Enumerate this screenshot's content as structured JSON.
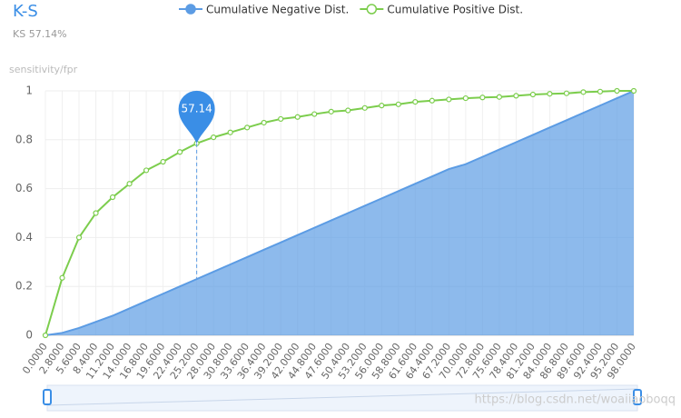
{
  "chart_data": {
    "type": "line",
    "title": "K-S",
    "subtitle": "KS  57.14%",
    "y_axis_label": "sensitivity/fpr",
    "annotation": "57.14",
    "watermark": "https://blog.csdn.net/woaiiaoboqq",
    "categories": [
      "0.0000",
      "2.8000",
      "5.6000",
      "8.4000",
      "11.2000",
      "14.0000",
      "16.8000",
      "19.6000",
      "22.4000",
      "25.2000",
      "28.0000",
      "30.8000",
      "33.6000",
      "36.4000",
      "39.2000",
      "42.0000",
      "44.8000",
      "47.6000",
      "50.4000",
      "53.2000",
      "56.0000",
      "58.8000",
      "61.6000",
      "64.4000",
      "67.2000",
      "70.0000",
      "72.8000",
      "75.6000",
      "78.4000",
      "81.2000",
      "84.0000",
      "86.8000",
      "89.6000",
      "92.4000",
      "95.2000",
      "98.0000"
    ],
    "series": [
      {
        "name": "Cumulative Negative Dist.",
        "color": "#5c9ce4",
        "area": true,
        "values": [
          0,
          0.01,
          0.03,
          0.055,
          0.08,
          0.11,
          0.14,
          0.17,
          0.2,
          0.23,
          0.26,
          0.29,
          0.32,
          0.35,
          0.38,
          0.41,
          0.44,
          0.47,
          0.5,
          0.53,
          0.56,
          0.59,
          0.62,
          0.65,
          0.68,
          0.7,
          0.73,
          0.76,
          0.79,
          0.82,
          0.85,
          0.88,
          0.91,
          0.94,
          0.97,
          1.0
        ]
      },
      {
        "name": "Cumulative Positive Dist.",
        "color": "#7ccd4d",
        "area": false,
        "values": [
          0,
          0.235,
          0.4,
          0.5,
          0.565,
          0.62,
          0.675,
          0.71,
          0.75,
          0.785,
          0.81,
          0.83,
          0.85,
          0.87,
          0.885,
          0.893,
          0.905,
          0.915,
          0.92,
          0.93,
          0.94,
          0.945,
          0.955,
          0.96,
          0.965,
          0.97,
          0.973,
          0.975,
          0.98,
          0.985,
          0.988,
          0.99,
          0.995,
          0.997,
          1.0,
          1.0
        ]
      }
    ],
    "ylim": [
      0,
      1
    ],
    "yticks": [
      0,
      0.2,
      0.4,
      0.6,
      0.8,
      1
    ],
    "grid": true
  }
}
